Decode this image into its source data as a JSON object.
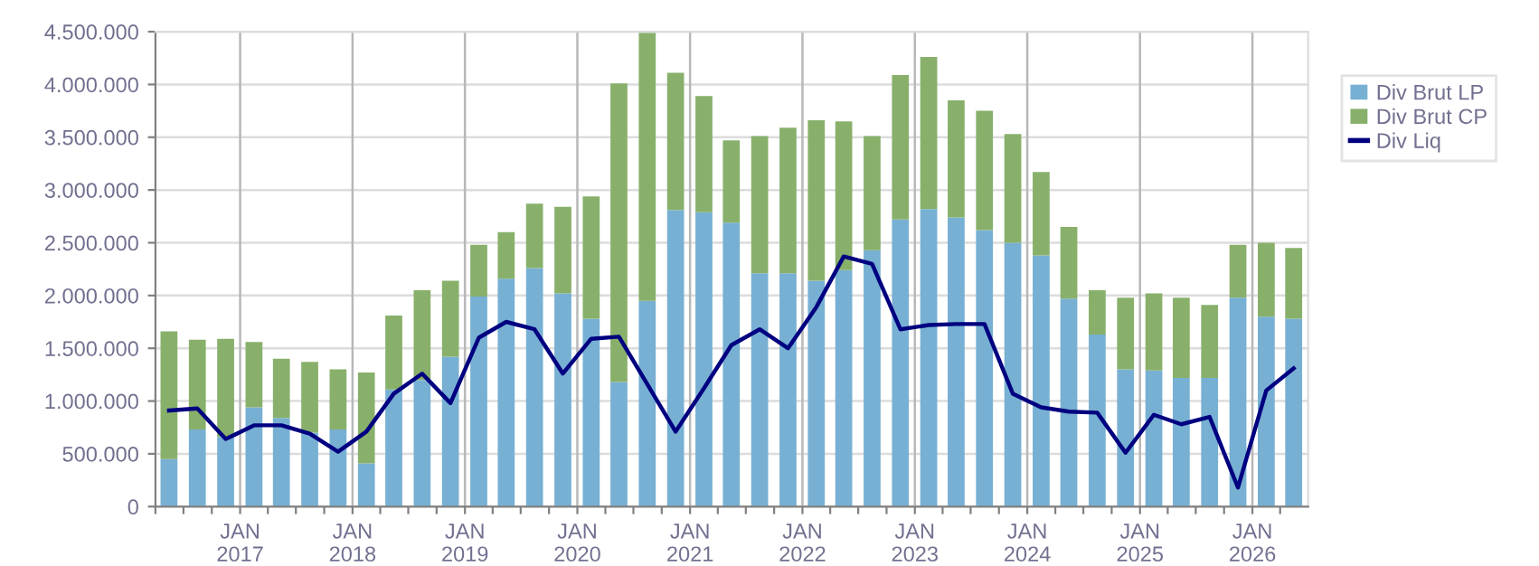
{
  "chart_data": {
    "type": "bar",
    "stacked": true,
    "x": [
      "2016-05-15",
      "2016-08-15",
      "2016-11-15",
      "2017-02-15",
      "2017-05-15",
      "2017-08-15",
      "2017-11-15",
      "2018-02-15",
      "2018-05-15",
      "2018-08-15",
      "2018-11-15",
      "2019-02-15",
      "2019-05-15",
      "2019-08-15",
      "2019-11-15",
      "2020-02-15",
      "2020-05-15",
      "2020-08-15",
      "2020-11-15",
      "2021-02-15",
      "2021-05-15",
      "2021-08-15",
      "2021-11-15",
      "2022-02-15",
      "2022-05-15",
      "2022-08-15",
      "2022-11-15",
      "2023-02-15",
      "2023-05-15",
      "2023-08-15",
      "2023-11-15",
      "2024-02-15",
      "2024-05-15",
      "2024-08-15",
      "2024-11-15",
      "2025-02-15",
      "2025-05-15",
      "2025-08-15",
      "2025-11-15",
      "2026-02-15",
      "2026-05-15"
    ],
    "series": [
      {
        "name": "Div Brut LP",
        "color": "#77b0d3",
        "values": [
          450000,
          730000,
          660000,
          940000,
          840000,
          700000,
          730000,
          410000,
          1110000,
          1200000,
          1420000,
          1990000,
          2160000,
          2260000,
          2020000,
          1780000,
          1180000,
          1950000,
          2810000,
          2790000,
          2690000,
          2210000,
          2210000,
          2140000,
          2240000,
          2430000,
          2720000,
          2820000,
          2740000,
          2620000,
          2500000,
          2380000,
          1970000,
          1630000,
          1300000,
          1290000,
          1220000,
          1220000,
          1980000,
          1800000,
          1780000
        ]
      },
      {
        "name": "Div Brut CP",
        "color": "#88b06b",
        "values": [
          1210000,
          850000,
          930000,
          620000,
          560000,
          670000,
          570000,
          860000,
          700000,
          850000,
          720000,
          490000,
          440000,
          610000,
          820000,
          1160000,
          2830000,
          2540000,
          1300000,
          1100000,
          780000,
          1300000,
          1380000,
          1520000,
          1410000,
          1080000,
          1370000,
          1440000,
          1110000,
          1130000,
          1030000,
          790000,
          680000,
          420000,
          680000,
          730000,
          760000,
          690000,
          500000,
          700000,
          670000
        ]
      },
      {
        "name": "Div Liq",
        "type": "line",
        "color": "#000080",
        "values": [
          910000,
          930000,
          640000,
          770000,
          770000,
          690000,
          520000,
          710000,
          1070000,
          1260000,
          980000,
          1600000,
          1750000,
          1680000,
          1260000,
          1590000,
          1610000,
          1160000,
          710000,
          1120000,
          1530000,
          1680000,
          1500000,
          1890000,
          2370000,
          2300000,
          1680000,
          1720000,
          1730000,
          1730000,
          1070000,
          940000,
          900000,
          890000,
          510000,
          870000,
          780000,
          850000,
          180000,
          1100000,
          1310000
        ]
      }
    ],
    "xlim": [
      "2016-04-01",
      "2026-07-01"
    ],
    "xticks": [
      {
        "value": "2016-04-01",
        "label": null
      },
      {
        "value": "2016-07-01",
        "label": null
      },
      {
        "value": "2016-10-01",
        "label": null
      },
      {
        "value": "2017-01-01",
        "label": "JAN\n2017"
      },
      {
        "value": "2017-04-01",
        "label": null
      },
      {
        "value": "2017-07-01",
        "label": null
      },
      {
        "value": "2017-10-01",
        "label": null
      },
      {
        "value": "2018-01-01",
        "label": "JAN\n2018"
      },
      {
        "value": "2018-04-01",
        "label": null
      },
      {
        "value": "2018-07-01",
        "label": null
      },
      {
        "value": "2018-10-01",
        "label": null
      },
      {
        "value": "2019-01-01",
        "label": "JAN\n2019"
      },
      {
        "value": "2019-04-01",
        "label": null
      },
      {
        "value": "2019-07-01",
        "label": null
      },
      {
        "value": "2019-10-01",
        "label": null
      },
      {
        "value": "2020-01-01",
        "label": "JAN\n2020"
      },
      {
        "value": "2020-04-01",
        "label": null
      },
      {
        "value": "2020-07-01",
        "label": null
      },
      {
        "value": "2020-10-01",
        "label": null
      },
      {
        "value": "2021-01-01",
        "label": "JAN\n2021"
      },
      {
        "value": "2021-04-01",
        "label": null
      },
      {
        "value": "2021-07-01",
        "label": null
      },
      {
        "value": "2021-10-01",
        "label": null
      },
      {
        "value": "2022-01-01",
        "label": "JAN\n2022"
      },
      {
        "value": "2022-04-01",
        "label": null
      },
      {
        "value": "2022-07-01",
        "label": null
      },
      {
        "value": "2022-10-01",
        "label": null
      },
      {
        "value": "2023-01-01",
        "label": "JAN\n2023"
      },
      {
        "value": "2023-04-01",
        "label": null
      },
      {
        "value": "2023-07-01",
        "label": null
      },
      {
        "value": "2023-10-01",
        "label": null
      },
      {
        "value": "2024-01-01",
        "label": "JAN\n2024"
      },
      {
        "value": "2024-04-01",
        "label": null
      },
      {
        "value": "2024-07-01",
        "label": null
      },
      {
        "value": "2024-10-01",
        "label": null
      },
      {
        "value": "2025-01-01",
        "label": "JAN\n2025"
      },
      {
        "value": "2025-04-01",
        "label": null
      },
      {
        "value": "2025-07-01",
        "label": null
      },
      {
        "value": "2025-10-01",
        "label": null
      },
      {
        "value": "2026-01-01",
        "label": "JAN\n2026"
      },
      {
        "value": "2026-04-01",
        "label": null
      }
    ],
    "ylim": [
      0,
      4500000
    ],
    "yticks": [
      {
        "value": 0,
        "label": "0"
      },
      {
        "value": 500000,
        "label": "500.000"
      },
      {
        "value": 1000000,
        "label": "1.000.000"
      },
      {
        "value": 1500000,
        "label": "1.500.000"
      },
      {
        "value": 2000000,
        "label": "2.000.000"
      },
      {
        "value": 2500000,
        "label": "2.500.000"
      },
      {
        "value": 3000000,
        "label": "3.000.000"
      },
      {
        "value": 3500000,
        "label": "3.500.000"
      },
      {
        "value": 4000000,
        "label": "4.000.000"
      },
      {
        "value": 4500000,
        "label": "4.500.000"
      }
    ],
    "grid": true,
    "legend": "top right",
    "marker": "none",
    "line_style": "solid"
  }
}
